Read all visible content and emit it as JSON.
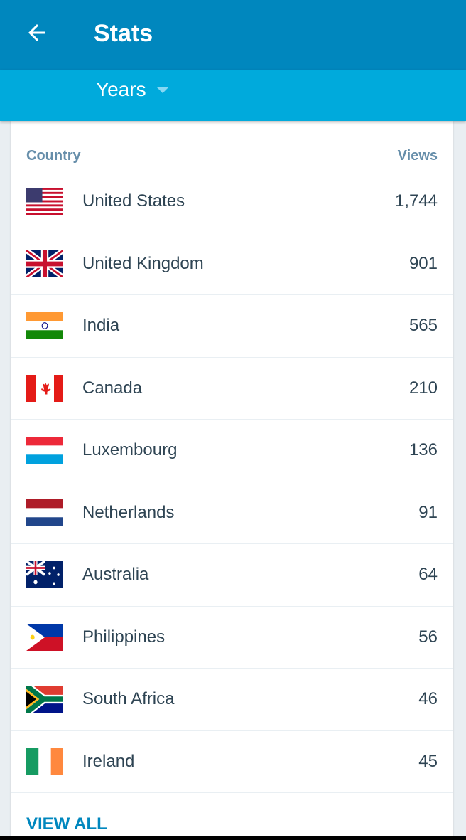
{
  "header": {
    "title": "Stats",
    "back_icon": "arrow-left-icon"
  },
  "period": {
    "selected": "Years"
  },
  "table": {
    "col_country": "Country",
    "col_views": "Views",
    "rows": [
      {
        "country": "United States",
        "views": "1,744",
        "flag": "us"
      },
      {
        "country": "United Kingdom",
        "views": "901",
        "flag": "gb"
      },
      {
        "country": "India",
        "views": "565",
        "flag": "in"
      },
      {
        "country": "Canada",
        "views": "210",
        "flag": "ca"
      },
      {
        "country": "Luxembourg",
        "views": "136",
        "flag": "lu"
      },
      {
        "country": "Netherlands",
        "views": "91",
        "flag": "nl"
      },
      {
        "country": "Australia",
        "views": "64",
        "flag": "au"
      },
      {
        "country": "Philippines",
        "views": "56",
        "flag": "ph"
      },
      {
        "country": "South Africa",
        "views": "46",
        "flag": "za"
      },
      {
        "country": "Ireland",
        "views": "45",
        "flag": "ie"
      }
    ]
  },
  "view_all": "VIEW ALL",
  "colors": {
    "header": "#0087be",
    "subheader": "#00aadc",
    "accent": "#0087be",
    "text": "#2e4453",
    "column_header": "#668eaa"
  }
}
